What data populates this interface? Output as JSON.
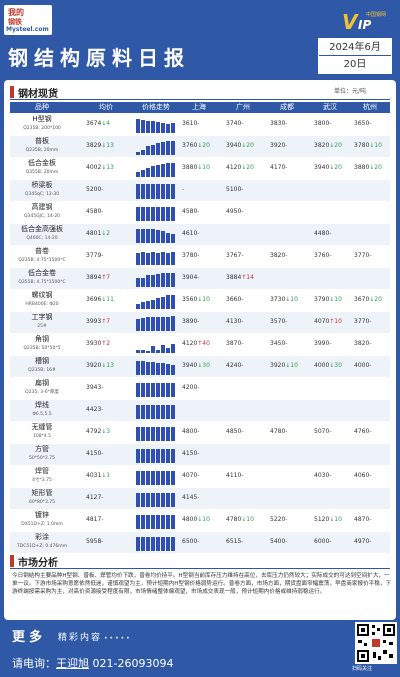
{
  "header": {
    "logo_line1": "我的",
    "logo_line2": "钢铁",
    "logo_line3": "Mysteel.com",
    "vip_small": "中国钢网",
    "vip_v": "V",
    "vip_ip": "IP",
    "title": "钢结构原料日报",
    "year_month": "2024年6月",
    "day": "20日"
  },
  "section1": {
    "title": "钢材现货",
    "unit": "单位：元/吨"
  },
  "columns": [
    "品种",
    "均价",
    "价格走势",
    "上海",
    "广州",
    "成都",
    "武汉",
    "杭州"
  ],
  "rows": [
    {
      "name": "H型钢",
      "spec": "Q235B; 200*100",
      "avg": "3674",
      "avg_chg": "↓4",
      "avg_dir": "dn",
      "trend": [
        0.8,
        0.75,
        0.7,
        0.7,
        0.65,
        0.6,
        0.55,
        0.6
      ],
      "shanghai": "3610",
      "sh_chg": "-",
      "guangzhou": "3740",
      "gz_chg": "-",
      "chengdu": "3830",
      "cd_chg": "-",
      "wuhan": "3800",
      "wh_chg": "-",
      "hangzhou": "3650",
      "hz_chg": "-"
    },
    {
      "name": "普板",
      "spec": "Q235B; 20mm",
      "avg": "3829",
      "avg_chg": "↓13",
      "avg_dir": "dn",
      "trend": [
        0.2,
        0.3,
        0.5,
        0.6,
        0.7,
        0.75,
        0.8,
        0.85
      ],
      "shanghai": "3760",
      "sh_chg": "↓20",
      "guangzhou": "3940",
      "gz_chg": "↓20",
      "chengdu": "3920",
      "cd_chg": "-",
      "wuhan": "3820",
      "wh_chg": "↓20",
      "hangzhou": "3780",
      "hz_chg": "↓10"
    },
    {
      "name": "低合金板",
      "spec": "Q355B; 20mm",
      "avg": "4002",
      "avg_chg": "↓13",
      "avg_dir": "dn",
      "trend": [
        0.3,
        0.4,
        0.55,
        0.65,
        0.7,
        0.75,
        0.8,
        0.85
      ],
      "shanghai": "3880",
      "sh_chg": "↓10",
      "guangzhou": "4120",
      "gz_chg": "↓20",
      "chengdu": "4170",
      "cd_chg": "-",
      "wuhan": "3940",
      "wh_chg": "↓20",
      "hangzhou": "3880",
      "hz_chg": "↓20"
    },
    {
      "name": "桥梁板",
      "spec": "Q345qC; 12-30",
      "avg": "5200",
      "avg_chg": "-",
      "avg_dir": "fl",
      "trend": [
        0.9,
        0.9,
        0.9,
        0.9,
        0.9,
        0.9,
        0.9,
        0.9
      ],
      "shanghai": "",
      "sh_chg": "-",
      "guangzhou": "5100",
      "gz_chg": "-",
      "chengdu": "",
      "cd_chg": "",
      "wuhan": "",
      "wh_chg": "",
      "hangzhou": "",
      "hz_chg": ""
    },
    {
      "name": "高建钢",
      "spec": "Q345GJC; 14-20",
      "avg": "4580",
      "avg_chg": "-",
      "avg_dir": "fl",
      "trend": [
        0.85,
        0.85,
        0.85,
        0.85,
        0.85,
        0.85,
        0.85,
        0.85
      ],
      "shanghai": "4580",
      "sh_chg": "-",
      "guangzhou": "4950",
      "gz_chg": "-",
      "chengdu": "",
      "cd_chg": "",
      "wuhan": "",
      "wh_chg": "",
      "hangzhou": "",
      "hz_chg": ""
    },
    {
      "name": "低合金高强板",
      "spec": "Q460C; 14-20",
      "avg": "4801",
      "avg_chg": "↓2",
      "avg_dir": "dn",
      "trend": [
        0.85,
        0.8,
        0.8,
        0.8,
        0.75,
        0.7,
        0.6,
        0.5
      ],
      "shanghai": "4610",
      "sh_chg": "-",
      "guangzhou": "",
      "gz_chg": "",
      "chengdu": "",
      "cd_chg": "",
      "wuhan": "4480",
      "wh_chg": "-",
      "hangzhou": "",
      "hz_chg": ""
    },
    {
      "name": "普卷",
      "spec": "Q235B; 4.75*1500*C",
      "avg": "3779",
      "avg_chg": "-",
      "avg_dir": "fl",
      "trend": [
        0.7,
        0.75,
        0.7,
        0.75,
        0.7,
        0.75,
        0.7,
        0.75
      ],
      "shanghai": "3780",
      "sh_chg": "-",
      "guangzhou": "3767",
      "gz_chg": "-",
      "chengdu": "3820",
      "cd_chg": "-",
      "wuhan": "3760",
      "wh_chg": "-",
      "hangzhou": "3770",
      "hz_chg": "-"
    },
    {
      "name": "低合金卷",
      "spec": "Q355B; 4.75*1500*C",
      "avg": "3894",
      "avg_chg": "↑7",
      "avg_dir": "up",
      "trend": [
        0.5,
        0.55,
        0.7,
        0.7,
        0.75,
        0.8,
        0.8,
        0.85
      ],
      "shanghai": "3904",
      "sh_chg": "-",
      "guangzhou": "3884",
      "gz_chg": "↑14",
      "chengdu": "",
      "cd_chg": "",
      "wuhan": "",
      "wh_chg": "",
      "hangzhou": "",
      "hz_chg": ""
    },
    {
      "name": "螺纹钢",
      "spec": "HRB400E; Φ20",
      "avg": "3696",
      "avg_chg": "↓11",
      "avg_dir": "dn",
      "trend": [
        0.3,
        0.4,
        0.45,
        0.55,
        0.65,
        0.7,
        0.8,
        0.85
      ],
      "shanghai": "3560",
      "sh_chg": "↓10",
      "guangzhou": "3660",
      "gz_chg": "-",
      "chengdu": "3730",
      "cd_chg": "↓10",
      "wuhan": "3790",
      "wh_chg": "↓10",
      "hangzhou": "3670",
      "hz_chg": "↓20"
    },
    {
      "name": "工字钢",
      "spec": "25#",
      "avg": "3993",
      "avg_chg": "↑7",
      "avg_dir": "up",
      "trend": [
        0.7,
        0.75,
        0.8,
        0.8,
        0.8,
        0.85,
        0.85,
        0.9
      ],
      "shanghai": "3890",
      "sh_chg": "-",
      "guangzhou": "4130",
      "gz_chg": "-",
      "chengdu": "3570",
      "cd_chg": "-",
      "wuhan": "4070",
      "wh_chg": "↑10",
      "hangzhou": "3770",
      "hz_chg": "-"
    },
    {
      "name": "角钢",
      "spec": "Q235B; 50*50*5",
      "avg": "3930",
      "avg_chg": "↑2",
      "avg_dir": "up",
      "trend": [
        0.2,
        0.15,
        0.1,
        0.4,
        0.2,
        0.45,
        0.3,
        0.5
      ],
      "shanghai": "4120",
      "sh_chg": "↑40",
      "guangzhou": "3870",
      "gz_chg": "-",
      "chengdu": "3450",
      "cd_chg": "-",
      "wuhan": "3990",
      "wh_chg": "-",
      "hangzhou": "3820",
      "hz_chg": "-"
    },
    {
      "name": "槽钢",
      "spec": "Q235B; 16#",
      "avg": "3920",
      "avg_chg": "↓13",
      "avg_dir": "dn",
      "trend": [
        0.8,
        0.8,
        0.75,
        0.75,
        0.7,
        0.7,
        0.65,
        0.6
      ],
      "shanghai": "3940",
      "sh_chg": "↓30",
      "guangzhou": "4240",
      "gz_chg": "-",
      "chengdu": "3920",
      "cd_chg": "↓10",
      "wuhan": "4000",
      "wh_chg": "↓30",
      "hangzhou": "4000",
      "hz_chg": "-"
    },
    {
      "name": "扁钢",
      "spec": "Q235; 3-6*厚度",
      "avg": "3943",
      "avg_chg": "-",
      "avg_dir": "fl",
      "trend": [
        0.85,
        0.85,
        0.85,
        0.85,
        0.85,
        0.85,
        0.85,
        0.85
      ],
      "shanghai": "4200",
      "sh_chg": "-",
      "guangzhou": "",
      "gz_chg": "",
      "chengdu": "",
      "cd_chg": "",
      "wuhan": "",
      "wh_chg": "",
      "hangzhou": "",
      "hz_chg": ""
    },
    {
      "name": "焊线",
      "spec": "Φ6.5,5.5",
      "avg": "4423",
      "avg_chg": "-",
      "avg_dir": "fl",
      "trend": [
        0.85,
        0.85,
        0.85,
        0.85,
        0.85,
        0.85,
        0.85,
        0.85
      ],
      "shanghai": "",
      "sh_chg": "",
      "guangzhou": "",
      "gz_chg": "",
      "chengdu": "",
      "cd_chg": "",
      "wuhan": "",
      "wh_chg": "",
      "hangzhou": "",
      "hz_chg": ""
    },
    {
      "name": "无缝管",
      "spec": "108*4.5",
      "avg": "4792",
      "avg_chg": "↓3",
      "avg_dir": "dn",
      "trend": [
        0.85,
        0.85,
        0.85,
        0.85,
        0.85,
        0.85,
        0.85,
        0.85
      ],
      "shanghai": "4800",
      "sh_chg": "-",
      "guangzhou": "4850",
      "gz_chg": "-",
      "chengdu": "4780",
      "cd_chg": "-",
      "wuhan": "5070",
      "wh_chg": "-",
      "hangzhou": "4760",
      "hz_chg": "-"
    },
    {
      "name": "方管",
      "spec": "50*50*2.75",
      "avg": "4150",
      "avg_chg": "-",
      "avg_dir": "fl",
      "trend": [
        0.85,
        0.85,
        0.85,
        0.85,
        0.85,
        0.85,
        0.85,
        0.85
      ],
      "shanghai": "4150",
      "sh_chg": "-",
      "guangzhou": "",
      "gz_chg": "",
      "chengdu": "",
      "cd_chg": "",
      "wuhan": "",
      "wh_chg": "",
      "hangzhou": "",
      "hz_chg": ""
    },
    {
      "name": "焊管",
      "spec": "4寸*3.75",
      "avg": "4031",
      "avg_chg": "↓1",
      "avg_dir": "dn",
      "trend": [
        0.85,
        0.85,
        0.85,
        0.85,
        0.85,
        0.85,
        0.85,
        0.85
      ],
      "shanghai": "4070",
      "sh_chg": "-",
      "guangzhou": "4110",
      "gz_chg": "-",
      "chengdu": "",
      "cd_chg": "",
      "wuhan": "4030",
      "wh_chg": "-",
      "hangzhou": "4060",
      "hz_chg": "-"
    },
    {
      "name": "矩形管",
      "spec": "60*80*3.75",
      "avg": "4127",
      "avg_chg": "-",
      "avg_dir": "fl",
      "trend": [
        0.85,
        0.85,
        0.85,
        0.85,
        0.85,
        0.85,
        0.85,
        0.85
      ],
      "shanghai": "4145",
      "sh_chg": "-",
      "guangzhou": "",
      "gz_chg": "",
      "chengdu": "",
      "cd_chg": "",
      "wuhan": "",
      "wh_chg": "",
      "hangzhou": "",
      "hz_chg": ""
    },
    {
      "name": "镀锌",
      "spec": "DX51D+Z; 1.0mm",
      "avg": "4817",
      "avg_chg": "-",
      "avg_dir": "fl",
      "trend": [
        0.85,
        0.85,
        0.85,
        0.85,
        0.85,
        0.85,
        0.85,
        0.85
      ],
      "shanghai": "4800",
      "sh_chg": "↓10",
      "guangzhou": "4780",
      "gz_chg": "↓10",
      "chengdu": "5220",
      "cd_chg": "-",
      "wuhan": "5120",
      "wh_chg": "↓10",
      "hangzhou": "4870",
      "hz_chg": "-"
    },
    {
      "name": "彩涂",
      "spec": "TDC51D+Z; 0.476mm",
      "avg": "5958",
      "avg_chg": "-",
      "avg_dir": "fl",
      "trend": [
        0.85,
        0.85,
        0.85,
        0.85,
        0.85,
        0.85,
        0.85,
        0.85
      ],
      "shanghai": "6500",
      "sh_chg": "-",
      "guangzhou": "6515",
      "gz_chg": "-",
      "chengdu": "5400",
      "cd_chg": "-",
      "wuhan": "6000",
      "wh_chg": "-",
      "hangzhou": "4970",
      "hz_chg": "-"
    }
  ],
  "section2": {
    "title": "市场分析",
    "text": "今日钢结构主要品种H型钢、普板、焊管均价下跌，普卷均价持平。H型钢当前库存压力维持在高位，去库压力仍然较大；实际成交的可达到空间扩大，一单一议。下游市场采购意愿依然低迷，谨慎观望为主，预计短期内H型钢价格弱势运行。普卷方面，市场方面，期货盘面窄幅震荡，早盘商家报价平稳，下游终端按需采购为主，对高价资源接受程度有限，市场情绪整体偏观望，市场成交表现一般，预计短期内价格或维持弱稳运行。"
  },
  "footer": {
    "more": "更多",
    "more_sub": "精彩内容",
    "dots": "•••••",
    "phone_label": "请电询：",
    "contact_name": "王迎旭",
    "phone": "021-26093094",
    "qr_caption": "扫码关注"
  }
}
